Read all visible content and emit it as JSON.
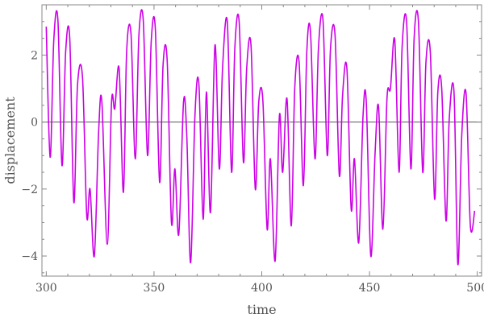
{
  "chart_data": {
    "type": "line",
    "title": "",
    "xlabel": "time",
    "ylabel": "displacement",
    "xlim": [
      298,
      502
    ],
    "ylim": [
      -4.6,
      3.5
    ],
    "x_ticks": [
      300,
      350,
      400,
      450,
      500
    ],
    "x_tick_labels": [
      "300",
      "350",
      "400",
      "450",
      "500"
    ],
    "y_ticks": [
      -4,
      -2,
      0,
      2
    ],
    "y_tick_labels": [
      "-4",
      "-2",
      "0",
      "2"
    ],
    "grid": false,
    "zero_line": true,
    "series": [
      {
        "color": "#cc00e6",
        "points": [
          [
            300.0,
            2.85
          ],
          [
            301.8,
            -1.05
          ],
          [
            303.5,
            2.45
          ],
          [
            305.4,
            3.05
          ],
          [
            307.3,
            -1.3
          ],
          [
            309.0,
            2.1
          ],
          [
            310.9,
            2.5
          ],
          [
            312.8,
            -2.4
          ],
          [
            314.5,
            1.1
          ],
          [
            316.8,
            1.35
          ],
          [
            318.8,
            -2.8
          ],
          [
            320.3,
            -2.0
          ],
          [
            322.3,
            -4.0
          ],
          [
            324.3,
            -0.3
          ],
          [
            325.8,
            0.6
          ],
          [
            328.3,
            -3.65
          ],
          [
            330.3,
            0.6
          ],
          [
            331.8,
            0.4
          ],
          [
            333.8,
            1.6
          ],
          [
            335.8,
            -2.1
          ],
          [
            337.3,
            2.1
          ],
          [
            339.3,
            2.65
          ],
          [
            341.3,
            -1.1
          ],
          [
            343.0,
            2.6
          ],
          [
            345.0,
            3.05
          ],
          [
            347.0,
            -1.0
          ],
          [
            348.7,
            2.4
          ],
          [
            350.6,
            2.8
          ],
          [
            352.6,
            -1.8
          ],
          [
            354.2,
            1.7
          ],
          [
            356.1,
            1.85
          ],
          [
            358.1,
            -3.0
          ],
          [
            359.7,
            -1.4
          ],
          [
            361.5,
            -3.35
          ],
          [
            363.7,
            0.6
          ],
          [
            365.2,
            -0.4
          ],
          [
            367.0,
            -4.2
          ],
          [
            369.0,
            0.2
          ],
          [
            370.8,
            1.15
          ],
          [
            372.8,
            -2.9
          ],
          [
            374.3,
            0.9
          ],
          [
            376.2,
            -2.7
          ],
          [
            378.3,
            2.3
          ],
          [
            380.3,
            -1.4
          ],
          [
            381.8,
            1.6
          ],
          [
            384.0,
            3.0
          ],
          [
            386.0,
            -1.5
          ],
          [
            387.5,
            2.2
          ],
          [
            389.5,
            3.0
          ],
          [
            391.5,
            -1.2
          ],
          [
            393.0,
            1.6
          ],
          [
            395.0,
            2.3
          ],
          [
            397.0,
            -2.0
          ],
          [
            398.6,
            0.6
          ],
          [
            400.5,
            0.65
          ],
          [
            402.5,
            -3.2
          ],
          [
            404.0,
            -1.1
          ],
          [
            406.2,
            -4.15
          ],
          [
            408.2,
            0.2
          ],
          [
            409.7,
            -1.5
          ],
          [
            411.7,
            0.7
          ],
          [
            413.7,
            -3.1
          ],
          [
            415.3,
            1.0
          ],
          [
            417.3,
            1.8
          ],
          [
            419.3,
            -1.9
          ],
          [
            420.9,
            2.1
          ],
          [
            422.6,
            2.7
          ],
          [
            424.7,
            -1.1
          ],
          [
            426.3,
            2.2
          ],
          [
            428.4,
            3.05
          ],
          [
            430.4,
            -1.0
          ],
          [
            431.9,
            2.2
          ],
          [
            434.0,
            2.6
          ],
          [
            436.0,
            -1.6
          ],
          [
            437.5,
            0.8
          ],
          [
            439.5,
            1.6
          ],
          [
            441.5,
            -2.6
          ],
          [
            443.0,
            -1.1
          ],
          [
            445.0,
            -3.6
          ],
          [
            447.0,
            0.2
          ],
          [
            448.5,
            0.6
          ],
          [
            450.6,
            -4.0
          ],
          [
            452.6,
            -0.9
          ],
          [
            454.2,
            0.45
          ],
          [
            456.2,
            -3.2
          ],
          [
            458.1,
            0.7
          ],
          [
            459.7,
            1.0
          ],
          [
            461.7,
            2.45
          ],
          [
            463.7,
            -1.5
          ],
          [
            465.1,
            2.2
          ],
          [
            467.2,
            3.0
          ],
          [
            469.2,
            -1.4
          ],
          [
            470.7,
            2.5
          ],
          [
            472.7,
            3.0
          ],
          [
            474.7,
            -1.5
          ],
          [
            476.2,
            1.8
          ],
          [
            478.2,
            2.1
          ],
          [
            480.2,
            -2.3
          ],
          [
            481.7,
            0.9
          ],
          [
            483.5,
            1.0
          ],
          [
            485.5,
            -2.95
          ],
          [
            487.0,
            0.1
          ],
          [
            489.2,
            0.9
          ],
          [
            491.0,
            -4.25
          ],
          [
            492.8,
            -0.4
          ],
          [
            494.8,
            0.85
          ],
          [
            496.8,
            -3.1
          ],
          [
            498.8,
            -2.65
          ]
        ]
      }
    ]
  }
}
